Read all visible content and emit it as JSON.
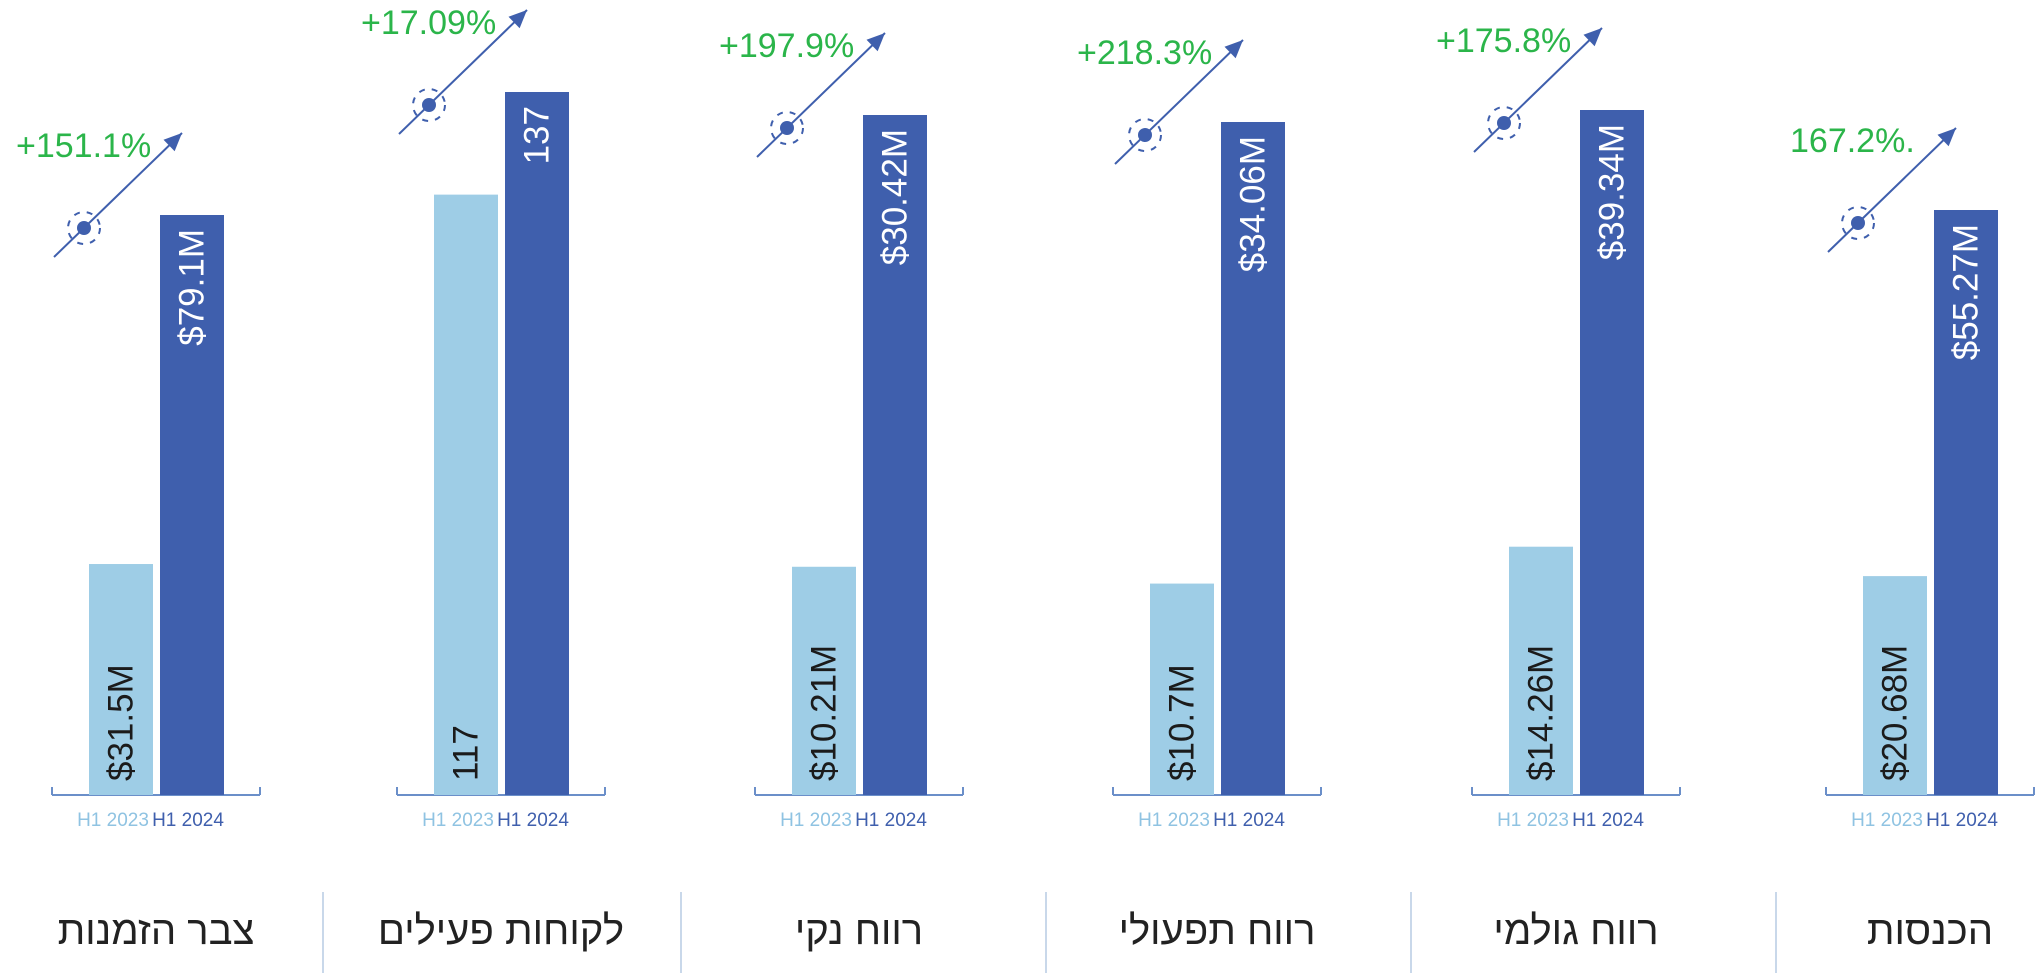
{
  "colors": {
    "bar_h1_2023": "#9ecde6",
    "bar_h1_2024": "#3f5fad",
    "growth_text": "#2bb54a",
    "axis": "#6b8fc9",
    "title_text": "#222222",
    "year_2023_text": "#8fc3e2",
    "year_2024_text": "#3f5fad",
    "divider": "#c9d8ea"
  },
  "icons": {
    "growth": "diagonal-arrow-with-target-icon"
  },
  "chart_data": [
    {
      "type": "bar",
      "title": "צבר הזמנות",
      "categories": [
        "H1 2023",
        "H1 2024"
      ],
      "values": [
        31.5,
        79.1
      ],
      "value_labels": [
        "$31.5M",
        "$79.1M"
      ],
      "growth_label": "+151.1%"
    },
    {
      "type": "bar",
      "title": "לקוחות פעילים",
      "categories": [
        "H1 2023",
        "H1 2024"
      ],
      "values": [
        117,
        137
      ],
      "value_labels": [
        "117",
        "137"
      ],
      "growth_label": "+17.09%"
    },
    {
      "type": "bar",
      "title": "רווח נקי",
      "categories": [
        "H1 2023",
        "H1 2024"
      ],
      "values": [
        10.21,
        30.42
      ],
      "value_labels": [
        "$10.21M",
        "$30.42M"
      ],
      "growth_label": "+197.9%"
    },
    {
      "type": "bar",
      "title": "רווח תפעולי",
      "categories": [
        "H1 2023",
        "H1 2024"
      ],
      "values": [
        10.7,
        34.06
      ],
      "value_labels": [
        "$10.7M",
        "$34.06M"
      ],
      "growth_label": "+218.3%"
    },
    {
      "type": "bar",
      "title": "רווח גולמי",
      "categories": [
        "H1 2023",
        "H1 2024"
      ],
      "values": [
        14.26,
        39.34
      ],
      "value_labels": [
        "$14.26M",
        "$39.34M"
      ],
      "growth_label": "+175.8%"
    },
    {
      "type": "bar",
      "title": "הכנסות",
      "categories": [
        "H1 2023",
        "H1 2024"
      ],
      "values": [
        20.68,
        55.27
      ],
      "value_labels": [
        "$20.68M",
        "$55.27M"
      ],
      "growth_label": "167.2%."
    }
  ]
}
